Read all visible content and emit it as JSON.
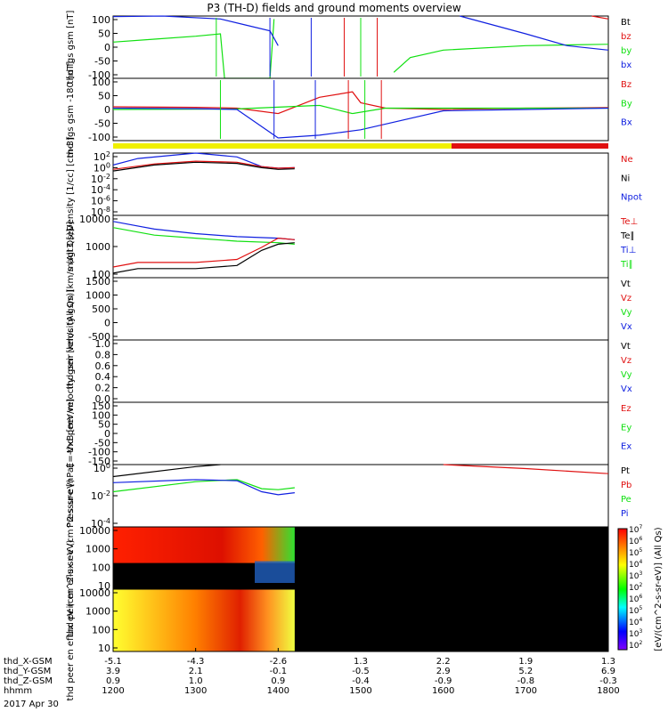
{
  "title": "P3 (TH-D) fields and ground moments overview",
  "colors": {
    "black": "#000000",
    "red": "#e01010",
    "green": "#10e010",
    "blue": "#1020e0",
    "yellow": "#f0f000"
  },
  "time_axis": {
    "ticks": [
      "1200",
      "1300",
      "1400",
      "1500",
      "1600",
      "1700",
      "1800"
    ],
    "date": "2017 Apr 30",
    "rows": [
      {
        "label": "thd_X-GSM",
        "values": [
          "-5.1",
          "-4.3",
          "-2.6",
          "1.3",
          "2.2",
          "1.9",
          "1.3"
        ]
      },
      {
        "label": "thd_Y-GSM",
        "values": [
          "3.9",
          "2.1",
          "-0.1",
          "-0.5",
          "2.9",
          "5.2",
          "6.9"
        ]
      },
      {
        "label": "thd_Z-GSM",
        "values": [
          "0.9",
          "1.0",
          "0.9",
          "-0.4",
          "-0.9",
          "-0.8",
          "-0.3"
        ]
      },
      {
        "label": "hhmm",
        "values": [
          "1200",
          "1300",
          "1400",
          "1500",
          "1600",
          "1700",
          "1800"
        ]
      }
    ]
  },
  "colorbar": {
    "label": "[eV/(cm^2-s-sr-eV)] (All Qs)",
    "ticks": [
      "10^2",
      "10^3",
      "10^4",
      "10^5",
      "10^6",
      "10^2",
      "10^3",
      "10^4",
      "10^5",
      "10^6",
      "10^7"
    ]
  },
  "chart_data": [
    {
      "type": "line",
      "ylabel": "thd fgs gsm [nT]",
      "yticks": [
        "100",
        "50",
        "0",
        "-50",
        "-100"
      ],
      "ylim": [
        -100,
        110
      ],
      "legend": [
        {
          "name": "Bt",
          "color": "#000000"
        },
        {
          "name": "bz",
          "color": "#e01010"
        },
        {
          "name": "by",
          "color": "#10e010"
        },
        {
          "name": "bx",
          "color": "#1020e0"
        }
      ],
      "series": [
        {
          "name": "by",
          "color": "#10e010",
          "points": [
            [
              1200,
              22
            ],
            [
              1250,
              32
            ],
            [
              1300,
              42
            ],
            [
              1330,
              50
            ],
            [
              1335,
              -100
            ],
            [
              1390,
              -100
            ],
            [
              1395,
              100
            ]
          ]
        },
        {
          "name": "bx",
          "color": "#1020e0",
          "points": [
            [
              1200,
              108
            ],
            [
              1260,
              110
            ],
            [
              1330,
              100
            ],
            [
              1360,
              80
            ],
            [
              1390,
              60
            ],
            [
              1400,
              10
            ]
          ]
        },
        {
          "name": "green_after",
          "color": "#10e010",
          "points": [
            [
              1540,
              -80
            ],
            [
              1560,
              -30
            ],
            [
              1600,
              -5
            ],
            [
              1700,
              10
            ],
            [
              1800,
              15
            ]
          ]
        },
        {
          "name": "blue_after",
          "color": "#1020e0",
          "points": [
            [
              1620,
              110
            ],
            [
              1660,
              80
            ],
            [
              1700,
              50
            ],
            [
              1750,
              10
            ],
            [
              1800,
              -5
            ]
          ]
        },
        {
          "name": "red_after",
          "color": "#e01010",
          "points": [
            [
              1780,
              110
            ],
            [
              1800,
              100
            ]
          ]
        }
      ]
    },
    {
      "type": "line",
      "ylabel": "thd fgs gsm -180 [nT]",
      "yticks": [
        "100",
        "50",
        "0",
        "-50",
        "-100"
      ],
      "ylim": [
        -120,
        110
      ],
      "legend": [
        {
          "name": "Bz",
          "color": "#e01010"
        },
        {
          "name": "By",
          "color": "#10e010"
        },
        {
          "name": "Bx",
          "color": "#1020e0"
        }
      ],
      "series": [
        {
          "name": "Bz",
          "color": "#e01010",
          "points": [
            [
              1200,
              5
            ],
            [
              1300,
              3
            ],
            [
              1350,
              0
            ],
            [
              1400,
              -20
            ],
            [
              1450,
              40
            ],
            [
              1490,
              60
            ],
            [
              1500,
              20
            ],
            [
              1530,
              0
            ],
            [
              1600,
              -5
            ],
            [
              1700,
              0
            ],
            [
              1800,
              2
            ]
          ]
        },
        {
          "name": "By",
          "color": "#10e010",
          "points": [
            [
              1200,
              -5
            ],
            [
              1300,
              -4
            ],
            [
              1350,
              -3
            ],
            [
              1450,
              10
            ],
            [
              1490,
              -20
            ],
            [
              1530,
              0
            ],
            [
              1600,
              0
            ],
            [
              1700,
              0
            ],
            [
              1800,
              0
            ]
          ]
        },
        {
          "name": "Bx",
          "color": "#1020e0",
          "points": [
            [
              1200,
              0
            ],
            [
              1300,
              -2
            ],
            [
              1350,
              -5
            ],
            [
              1400,
              -110
            ],
            [
              1450,
              -100
            ],
            [
              1500,
              -80
            ],
            [
              1600,
              -10
            ],
            [
              1700,
              -5
            ],
            [
              1800,
              0
            ]
          ]
        }
      ]
    },
    {
      "type": "line",
      "ylabel": "Density [1/cc] [cm-3]",
      "yticks": [
        "10^2",
        "10^0",
        "10^-2",
        "10^-4",
        "10^-6",
        "10^-8"
      ],
      "ylim": [
        -9,
        2.5
      ],
      "log": true,
      "legend": [
        {
          "name": "Ne",
          "color": "#e01010"
        },
        {
          "name": "Ni",
          "color": "#000000"
        },
        {
          "name": "Npot",
          "color": "#1020e0"
        }
      ],
      "series": [
        {
          "name": "Npot",
          "color": "#1020e0",
          "points": [
            [
              1200,
              0.3
            ],
            [
              1230,
              1.5
            ],
            [
              1300,
              2.5
            ],
            [
              1350,
              1.8
            ],
            [
              1380,
              0.0
            ],
            [
              1400,
              -0.3
            ],
            [
              1420,
              -0.2
            ]
          ]
        },
        {
          "name": "Ne",
          "color": "#e01010",
          "points": [
            [
              1200,
              -0.5
            ],
            [
              1250,
              0.5
            ],
            [
              1300,
              1.0
            ],
            [
              1350,
              0.8
            ],
            [
              1380,
              0.0
            ],
            [
              1400,
              -0.3
            ],
            [
              1420,
              -0.2
            ]
          ]
        },
        {
          "name": "Ni",
          "color": "#000000",
          "points": [
            [
              1200,
              -0.8
            ],
            [
              1250,
              0.3
            ],
            [
              1300,
              0.8
            ],
            [
              1350,
              0.6
            ],
            [
              1380,
              -0.2
            ],
            [
              1400,
              -0.5
            ],
            [
              1420,
              -0.4
            ]
          ]
        }
      ]
    },
    {
      "type": "line",
      "ylabel": "magt3 [eV]",
      "yticks": [
        "10000",
        "1000",
        "100"
      ],
      "ylim": [
        2,
        4.05
      ],
      "log": true,
      "legend": [
        {
          "name": "Te⊥",
          "color": "#e01010"
        },
        {
          "name": "Te∥",
          "color": "#000000"
        },
        {
          "name": "Ti⊥",
          "color": "#1020e0"
        },
        {
          "name": "Ti∥",
          "color": "#10e010"
        }
      ],
      "series": [
        {
          "name": "Ti⊥",
          "color": "#1020e0",
          "points": [
            [
              1200,
              3.85
            ],
            [
              1250,
              3.6
            ],
            [
              1300,
              3.45
            ],
            [
              1350,
              3.35
            ],
            [
              1400,
              3.3
            ],
            [
              1420,
              3.25
            ]
          ]
        },
        {
          "name": "Ti∥",
          "color": "#10e010",
          "points": [
            [
              1200,
              3.65
            ],
            [
              1250,
              3.4
            ],
            [
              1300,
              3.3
            ],
            [
              1350,
              3.2
            ],
            [
              1400,
              3.15
            ],
            [
              1420,
              3.1
            ]
          ]
        },
        {
          "name": "Te⊥",
          "color": "#e01010",
          "points": [
            [
              1200,
              2.35
            ],
            [
              1230,
              2.5
            ],
            [
              1300,
              2.5
            ],
            [
              1350,
              2.6
            ],
            [
              1380,
              3.0
            ],
            [
              1400,
              3.3
            ],
            [
              1420,
              3.25
            ]
          ]
        },
        {
          "name": "Te∥",
          "color": "#000000",
          "points": [
            [
              1200,
              2.15
            ],
            [
              1230,
              2.3
            ],
            [
              1300,
              2.3
            ],
            [
              1350,
              2.4
            ],
            [
              1380,
              2.9
            ],
            [
              1400,
              3.1
            ],
            [
              1420,
              3.15
            ]
          ]
        }
      ]
    },
    {
      "type": "line",
      "ylabel": "thd peir velocity gsm [km/s (All Qs)]",
      "yticks": [
        "1500",
        "1000",
        "500",
        "0",
        "-500"
      ],
      "ylim": [
        -500,
        1500
      ],
      "legend": [
        {
          "name": "Vt",
          "color": "#000000"
        },
        {
          "name": "Vz",
          "color": "#e01010"
        },
        {
          "name": "Vy",
          "color": "#10e010"
        },
        {
          "name": "Vx",
          "color": "#1020e0"
        }
      ],
      "series": []
    },
    {
      "type": "line",
      "ylabel": "thd peer velocity gsm [km/s (All Qs)]",
      "yticks": [
        "1.0",
        "0.8",
        "0.6",
        "0.4",
        "0.2",
        "0.0"
      ],
      "ylim": [
        0,
        1
      ],
      "legend": [
        {
          "name": "Vt",
          "color": "#000000"
        },
        {
          "name": "Vz",
          "color": "#e01010"
        },
        {
          "name": "Vy",
          "color": "#10e010"
        },
        {
          "name": "Vx",
          "color": "#1020e0"
        }
      ],
      "series": []
    },
    {
      "type": "line",
      "ylabel": "E=-VxB [mV/m]",
      "yticks": [
        "150",
        "100",
        "50",
        "0",
        "-50",
        "-100",
        "-150"
      ],
      "ylim": [
        -160,
        160
      ],
      "legend": [
        {
          "name": "Ez",
          "color": "#e01010"
        },
        {
          "name": "Ey",
          "color": "#10e010"
        },
        {
          "name": "Ex",
          "color": "#1020e0"
        }
      ],
      "series": []
    },
    {
      "type": "line",
      "ylabel": "Pressure [nPa]",
      "yticks": [
        "10^0",
        "10^-2",
        "10^-4"
      ],
      "ylim": [
        -5,
        1.2
      ],
      "log": true,
      "legend": [
        {
          "name": "Pt",
          "color": "#000000"
        },
        {
          "name": "Pb",
          "color": "#e01010"
        },
        {
          "name": "Pe",
          "color": "#10e010"
        },
        {
          "name": "Pi",
          "color": "#1020e0"
        }
      ],
      "series": [
        {
          "name": "Pt",
          "color": "#000000",
          "points": [
            [
              1200,
              0.0
            ],
            [
              1300,
              1.0
            ],
            [
              1330,
              1.2
            ]
          ]
        },
        {
          "name": "Pb",
          "color": "#e01010",
          "points": [
            [
              1600,
              1.2
            ],
            [
              1700,
              0.8
            ],
            [
              1800,
              0.3
            ]
          ]
        },
        {
          "name": "Pe",
          "color": "#10e010",
          "points": [
            [
              1200,
              -1.5
            ],
            [
              1300,
              -0.5
            ],
            [
              1350,
              -0.3
            ],
            [
              1380,
              -1.2
            ],
            [
              1400,
              -1.3
            ],
            [
              1420,
              -1.1
            ]
          ]
        },
        {
          "name": "Pi",
          "color": "#1020e0",
          "points": [
            [
              1200,
              -0.6
            ],
            [
              1300,
              -0.3
            ],
            [
              1350,
              -0.4
            ],
            [
              1380,
              -1.5
            ],
            [
              1400,
              -1.8
            ],
            [
              1420,
              -1.6
            ]
          ]
        }
      ]
    },
    {
      "type": "heatmap",
      "ylabel": "thd peir en eflux eV (cm^2-s-sr-eV)",
      "yticks": [
        "10000",
        "1000",
        "100",
        "10"
      ],
      "data_until": 1420
    },
    {
      "type": "heatmap",
      "ylabel": "thd peer en eflux eV (cm^2-s-sr-eV)",
      "yticks": [
        "10000",
        "1000",
        "100",
        "10"
      ],
      "data_until": 1420
    }
  ]
}
